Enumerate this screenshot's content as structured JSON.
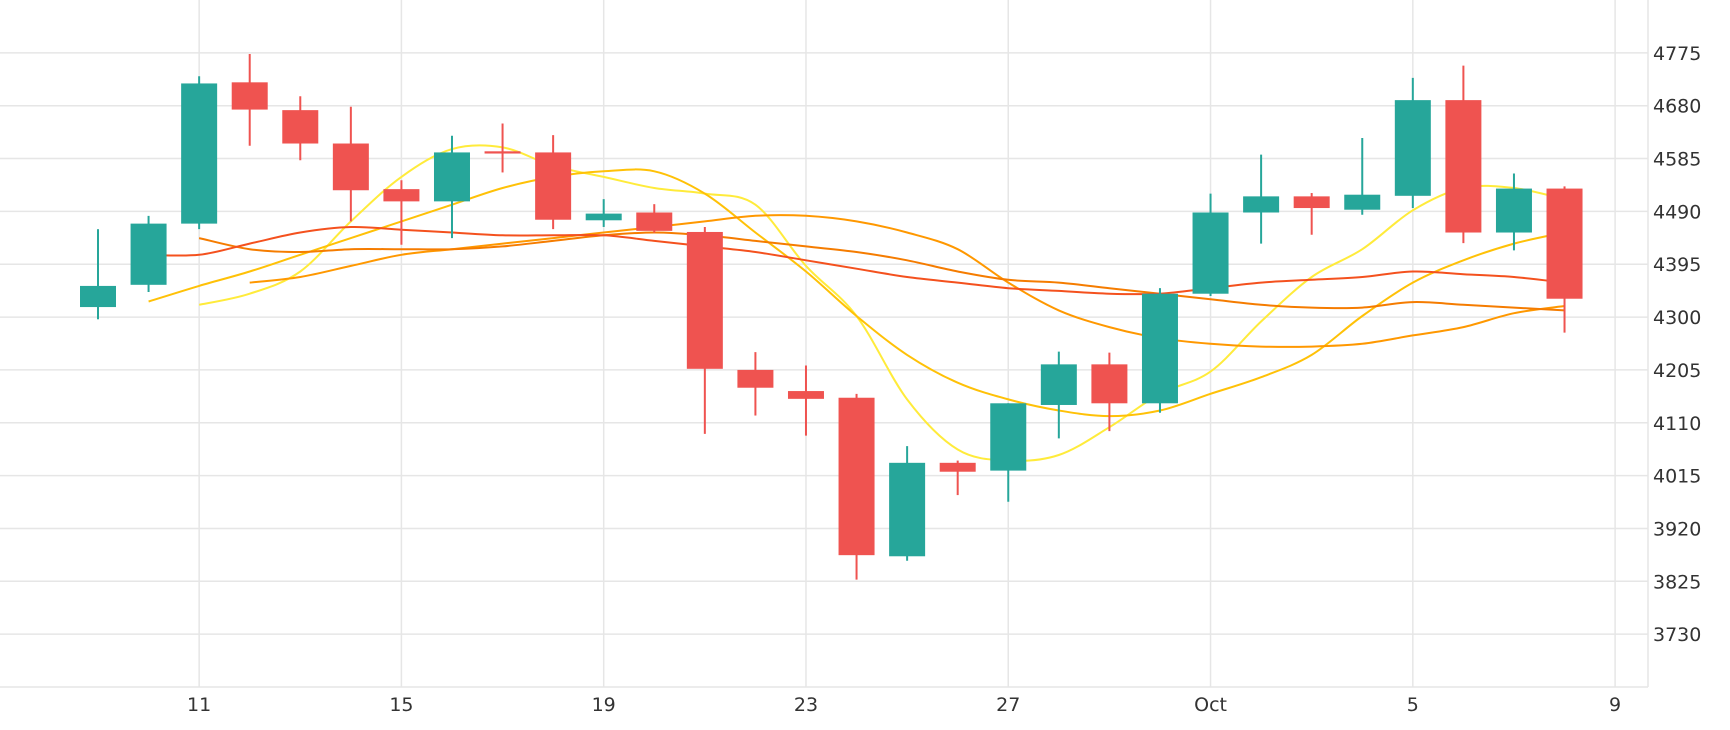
{
  "chart_data": {
    "type": "candlestick",
    "x_tick_labels": [
      "11",
      "15",
      "19",
      "23",
      "27",
      "Oct",
      "5",
      "9"
    ],
    "y_tick_labels": [
      "3730",
      "3825",
      "3920",
      "4015",
      "4110",
      "4205",
      "4300",
      "4395",
      "4490",
      "4585",
      "4680",
      "4775"
    ],
    "ylim": [
      3635,
      4870
    ],
    "grid": true,
    "up_color": "#26a69a",
    "down_color": "#ef5350",
    "x_ticks": [
      {
        "label": "11",
        "date": "Sep 11"
      },
      {
        "label": "15",
        "date": "Sep 15"
      },
      {
        "label": "19",
        "date": "Sep 19"
      },
      {
        "label": "23",
        "date": "Sep 23"
      },
      {
        "label": "27",
        "date": "Sep 27"
      },
      {
        "label": "Oct",
        "date": "Oct 1"
      },
      {
        "label": "5",
        "date": "Oct 5"
      },
      {
        "label": "9",
        "date": "Oct 9"
      }
    ],
    "candles": [
      {
        "date": "Sep 9",
        "open": 4318,
        "high": 4458,
        "low": 4296,
        "close": 4356
      },
      {
        "date": "Sep 10",
        "open": 4358,
        "high": 4482,
        "low": 4345,
        "close": 4468
      },
      {
        "date": "Sep 11",
        "open": 4468,
        "high": 4733,
        "low": 4458,
        "close": 4720
      },
      {
        "date": "Sep 12",
        "open": 4722,
        "high": 4773,
        "low": 4608,
        "close": 4673
      },
      {
        "date": "Sep 13",
        "open": 4672,
        "high": 4697,
        "low": 4582,
        "close": 4612
      },
      {
        "date": "Sep 14",
        "open": 4612,
        "high": 4678,
        "low": 4472,
        "close": 4528
      },
      {
        "date": "Sep 15",
        "open": 4530,
        "high": 4546,
        "low": 4430,
        "close": 4508
      },
      {
        "date": "Sep 16",
        "open": 4508,
        "high": 4626,
        "low": 4442,
        "close": 4596
      },
      {
        "date": "Sep 17",
        "open": 4598,
        "high": 4648,
        "low": 4560,
        "close": 4594
      },
      {
        "date": "Sep 18",
        "open": 4596,
        "high": 4627,
        "low": 4458,
        "close": 4475
      },
      {
        "date": "Sep 19",
        "open": 4474,
        "high": 4512,
        "low": 4462,
        "close": 4486
      },
      {
        "date": "Sep 20",
        "open": 4488,
        "high": 4503,
        "low": 4452,
        "close": 4455
      },
      {
        "date": "Sep 21",
        "open": 4453,
        "high": 4462,
        "low": 4090,
        "close": 4207
      },
      {
        "date": "Sep 22",
        "open": 4205,
        "high": 4237,
        "low": 4123,
        "close": 4173
      },
      {
        "date": "Sep 23",
        "open": 4167,
        "high": 4213,
        "low": 4087,
        "close": 4153
      },
      {
        "date": "Sep 24",
        "open": 4155,
        "high": 4162,
        "low": 3828,
        "close": 3872
      },
      {
        "date": "Sep 25",
        "open": 3870,
        "high": 4068,
        "low": 3862,
        "close": 4038
      },
      {
        "date": "Sep 26",
        "open": 4038,
        "high": 4042,
        "low": 3980,
        "close": 4022
      },
      {
        "date": "Sep 27",
        "open": 4024,
        "high": 4145,
        "low": 3968,
        "close": 4145
      },
      {
        "date": "Sep 28",
        "open": 4142,
        "high": 4238,
        "low": 4082,
        "close": 4215
      },
      {
        "date": "Sep 29",
        "open": 4215,
        "high": 4236,
        "low": 4095,
        "close": 4145
      },
      {
        "date": "Sep 30",
        "open": 4145,
        "high": 4352,
        "low": 4128,
        "close": 4342
      },
      {
        "date": "Oct 1",
        "open": 4342,
        "high": 4522,
        "low": 4338,
        "close": 4488
      },
      {
        "date": "Oct 2",
        "open": 4488,
        "high": 4592,
        "low": 4432,
        "close": 4517
      },
      {
        "date": "Oct 3",
        "open": 4517,
        "high": 4523,
        "low": 4448,
        "close": 4496
      },
      {
        "date": "Oct 4",
        "open": 4493,
        "high": 4622,
        "low": 4484,
        "close": 4520
      },
      {
        "date": "Oct 5",
        "open": 4518,
        "high": 4730,
        "low": 4496,
        "close": 4690
      },
      {
        "date": "Oct 6",
        "open": 4690,
        "high": 4752,
        "low": 4433,
        "close": 4452
      },
      {
        "date": "Oct 7",
        "open": 4452,
        "high": 4558,
        "low": 4420,
        "close": 4531
      },
      {
        "date": "Oct 8",
        "open": 4531,
        "high": 4535,
        "low": 4272,
        "close": 4333
      }
    ],
    "moving_averages": [
      {
        "color": "#ffeb3b",
        "values": [
          4322,
          4342,
          4382,
          4472,
          4552,
          4602,
          4605,
          4572,
          4552,
          4532,
          4522,
          4502,
          4392,
          4302,
          4152,
          4062,
          4042,
          4052,
          4102,
          4162,
          4202,
          4292,
          4372,
          4422,
          4492,
          4532,
          4532,
          4512
        ]
      },
      {
        "color": "#ffc107",
        "values": [
          4328,
          4356,
          4382,
          4412,
          4442,
          4472,
          4502,
          4532,
          4552,
          4562,
          4562,
          4522,
          4452,
          4382,
          4302,
          4232,
          4182,
          4152,
          4132,
          4122,
          4132,
          4162,
          4192,
          4232,
          4302,
          4362,
          4402,
          4432,
          4452
        ]
      },
      {
        "color": "#ff9800",
        "values": [
          4362,
          4372,
          4392,
          4412,
          4422,
          4432,
          4442,
          4452,
          4462,
          4472,
          4482,
          4482,
          4472,
          4452,
          4422,
          4362,
          4312,
          4282,
          4262,
          4252,
          4247,
          4247,
          4252,
          4267,
          4282,
          4307,
          4320
        ]
      },
      {
        "color": "#f57c00",
        "values": [
          4442,
          4422,
          4417,
          4422,
          4422,
          4422,
          4427,
          4437,
          4447,
          4452,
          4447,
          4437,
          4427,
          4417,
          4402,
          4382,
          4367,
          4362,
          4352,
          4342,
          4332,
          4322,
          4317,
          4317,
          4327,
          4322,
          4317,
          4312
        ]
      },
      {
        "color": "#f4511e",
        "values": [
          4412,
          4412,
          4432,
          4452,
          4462,
          4457,
          4452,
          4447,
          4447,
          4447,
          4437,
          4427,
          4417,
          4402,
          4387,
          4372,
          4362,
          4352,
          4347,
          4342,
          4342,
          4352,
          4362,
          4367,
          4372,
          4382,
          4377,
          4372,
          4362
        ]
      }
    ]
  }
}
